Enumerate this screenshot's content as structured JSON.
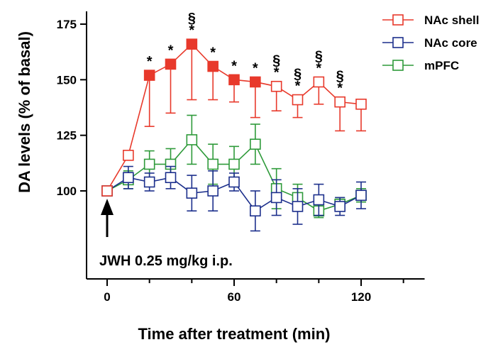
{
  "chart_data": {
    "type": "line",
    "title": "",
    "xlabel": "Time after treatment (min)",
    "ylabel": "DA levels (% of basal)",
    "xlim": [
      -10,
      150
    ],
    "ylim": [
      65,
      180
    ],
    "x_ticks": [
      0,
      60,
      120
    ],
    "x_tick_labels": [
      "0",
      "60",
      "120"
    ],
    "y_ticks": [
      100,
      125,
      150,
      175
    ],
    "y_tick_labels": [
      "100",
      "125",
      "150",
      "175"
    ],
    "legend_position": "top-right",
    "annotation": "JWH 0.25 mg/kg i.p.",
    "arrow_at_x": 0,
    "series": [
      {
        "name": "NAc shell",
        "color": "#e8392b",
        "x": [
          0,
          10,
          20,
          30,
          40,
          50,
          60,
          70,
          80,
          90,
          100,
          110,
          120
        ],
        "values": [
          100,
          116,
          152,
          157,
          166,
          156,
          150,
          149,
          147,
          141,
          149,
          140,
          139
        ],
        "error": [
          0,
          0,
          23,
          22,
          25,
          15,
          10,
          16,
          11,
          8,
          10,
          13,
          12
        ],
        "filled": [
          false,
          false,
          true,
          true,
          true,
          true,
          true,
          true,
          false,
          false,
          false,
          false,
          false
        ],
        "star": [
          false,
          false,
          true,
          true,
          true,
          true,
          true,
          true,
          true,
          true,
          true,
          true,
          false
        ],
        "section": [
          false,
          false,
          false,
          false,
          true,
          false,
          false,
          false,
          true,
          true,
          true,
          true,
          false
        ]
      },
      {
        "name": "NAc core",
        "color": "#1c2f8c",
        "x": [
          0,
          10,
          20,
          30,
          40,
          50,
          60,
          70,
          80,
          90,
          100,
          110,
          120
        ],
        "values": [
          100,
          106,
          104,
          106,
          99,
          100,
          104,
          91,
          97,
          93,
          96,
          93,
          98
        ],
        "error": [
          0,
          5,
          4,
          5,
          8,
          9,
          4,
          9,
          8,
          8,
          7,
          4,
          6
        ]
      },
      {
        "name": "mPFC",
        "color": "#2e9a3a",
        "x": [
          0,
          10,
          20,
          30,
          40,
          50,
          60,
          70,
          80,
          90,
          100,
          110,
          120
        ],
        "values": [
          100,
          105,
          112,
          112,
          123,
          112,
          112,
          121,
          101,
          97,
          91,
          94,
          98
        ],
        "error": [
          0,
          4,
          6,
          7,
          11,
          9,
          8,
          9,
          9,
          6,
          3,
          3,
          3
        ]
      }
    ]
  }
}
